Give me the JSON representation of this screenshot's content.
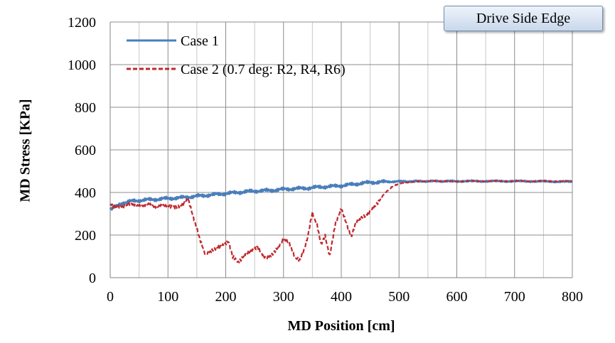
{
  "chart_data": {
    "type": "line",
    "xlabel": "MD Position [cm]",
    "ylabel": "MD Stress [KPa]",
    "annotation": "Drive Side Edge",
    "xlim": [
      0,
      800
    ],
    "ylim": [
      0,
      1200
    ],
    "x_ticks": [
      0,
      100,
      200,
      300,
      400,
      500,
      600,
      700,
      800
    ],
    "y_ticks": [
      0,
      200,
      400,
      600,
      800,
      1000,
      1200
    ],
    "grid": true,
    "legend_position": "top-left",
    "series": [
      {
        "name": "Case 1",
        "color": "#4a7ebb",
        "style": "solid",
        "x": [
          0,
          10,
          20,
          40,
          60,
          80,
          100,
          120,
          140,
          160,
          180,
          200,
          220,
          240,
          260,
          280,
          300,
          320,
          340,
          360,
          380,
          400,
          420,
          440,
          460,
          480,
          500,
          520,
          540,
          560,
          580,
          600,
          650,
          700,
          750,
          800
        ],
        "y": [
          320,
          340,
          350,
          360,
          365,
          368,
          372,
          375,
          380,
          385,
          390,
          395,
          400,
          405,
          408,
          410,
          415,
          418,
          420,
          425,
          428,
          432,
          438,
          445,
          448,
          450,
          452,
          452,
          453,
          453,
          453,
          453,
          453,
          453,
          452,
          450
        ]
      },
      {
        "name": "Case 2 (0.7 deg: R2, R4, R6)",
        "color": "#c0282d",
        "style": "dashed",
        "x": [
          0,
          5,
          20,
          40,
          60,
          80,
          100,
          115,
          125,
          135,
          145,
          155,
          165,
          175,
          185,
          195,
          205,
          212,
          220,
          228,
          235,
          245,
          255,
          262,
          270,
          280,
          290,
          300,
          310,
          320,
          328,
          335,
          342,
          350,
          358,
          365,
          372,
          380,
          390,
          400,
          410,
          418,
          425,
          435,
          445,
          460,
          475,
          490,
          505,
          530,
          560,
          600,
          650,
          700,
          750,
          800
        ],
        "y": [
          345,
          330,
          340,
          342,
          340,
          338,
          335,
          335,
          345,
          365,
          270,
          180,
          110,
          130,
          145,
          150,
          165,
          95,
          75,
          90,
          120,
          130,
          145,
          110,
          95,
          110,
          140,
          175,
          160,
          90,
          80,
          120,
          190,
          305,
          250,
          160,
          200,
          100,
          260,
          330,
          250,
          195,
          260,
          285,
          300,
          345,
          395,
          430,
          445,
          452,
          452,
          452,
          453,
          453,
          453,
          453
        ]
      }
    ]
  }
}
